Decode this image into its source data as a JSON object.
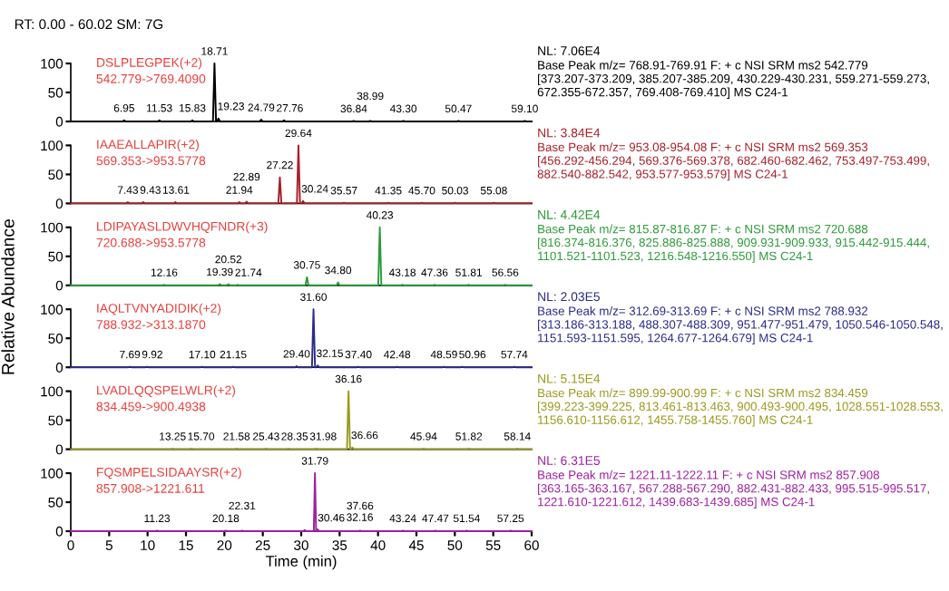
{
  "chart_data": [
    {
      "type": "line",
      "title": "RT: 0.00 - 60.02 SM: 7G",
      "xlim": [
        0,
        60
      ],
      "ylim": [
        0,
        100
      ],
      "yticks": [
        0,
        50,
        100
      ],
      "tick_labels": "y",
      "series": [
        {
          "color": "#000000",
          "x": [
            0,
            6.75,
            6.95,
            7.15,
            11.33,
            11.53,
            11.73,
            15.63,
            15.83,
            16.03,
            18.51,
            18.71,
            18.91,
            19.03,
            19.23,
            19.43,
            24.59,
            24.79,
            24.99,
            27.56,
            27.76,
            27.96,
            36.64,
            36.84,
            37.04,
            38.79,
            38.99,
            39.19,
            43.1,
            43.3,
            43.5,
            50.27,
            50.47,
            50.67,
            58.9,
            59.1,
            59.3,
            60
          ],
          "values": [
            0,
            0,
            2,
            0,
            0,
            2,
            0,
            0,
            2,
            0,
            0,
            100,
            0,
            0,
            5,
            0,
            0,
            3,
            0,
            0,
            2,
            0,
            0,
            1,
            0,
            0,
            1,
            0,
            0,
            1,
            0,
            0,
            1,
            0,
            0,
            1,
            0,
            0
          ]
        }
      ],
      "annotations": [
        "DSLPLEGPEK(+2)",
        "542.779->769.4090",
        "NL: 7.06E4",
        "Base Peak m/z= 768.91-769.91 F: + c NSI SRM ms2 542.779 [373.207-373.209, 385.207-385.209, 430.229-430.231, 559.271-559.273, 672.355-672.357, 769.408-769.410] MS C24-1",
        {
          "text": "6.95",
          "x": 6.95,
          "y": 2
        },
        {
          "text": "11.53",
          "x": 11.53,
          "y": 2
        },
        {
          "text": "15.83",
          "x": 15.83,
          "y": 2
        },
        {
          "text": "18.71",
          "x": 18.71,
          "y": 100
        },
        {
          "text": "19.23",
          "x": 19.23,
          "y": 5
        },
        {
          "text": "24.79",
          "x": 24.79,
          "y": 3
        },
        {
          "text": "27.76",
          "x": 27.76,
          "y": 2
        },
        {
          "text": "36.84",
          "x": 36.84,
          "y": 1
        },
        {
          "text": "38.99",
          "x": 38.99,
          "y": 1
        },
        {
          "text": "43.30",
          "x": 43.3,
          "y": 1
        },
        {
          "text": "50.47",
          "x": 50.47,
          "y": 1
        },
        {
          "text": "59.10",
          "x": 59.1,
          "y": 1
        }
      ]
    },
    {
      "type": "line",
      "xlim": [
        0,
        60
      ],
      "ylim": [
        0,
        100
      ],
      "yticks": [
        0,
        50,
        100
      ],
      "tick_labels": "y",
      "series": [
        {
          "color": "#a8202a",
          "x": [
            0,
            7.23,
            7.43,
            7.63,
            9.23,
            9.43,
            9.63,
            13.41,
            13.61,
            13.81,
            21.74,
            21.94,
            22.14,
            22.69,
            22.89,
            23.09,
            27.02,
            27.22,
            27.42,
            29.44,
            29.64,
            29.84,
            30.04,
            30.24,
            30.44,
            35.37,
            35.57,
            35.77,
            41.15,
            41.35,
            41.55,
            45.5,
            45.7,
            45.9,
            49.83,
            50.03,
            50.23,
            54.88,
            55.08,
            55.28,
            60
          ],
          "values": [
            0,
            0,
            2,
            0,
            0,
            2,
            0,
            0,
            2,
            0,
            0,
            2,
            0,
            0,
            3,
            0,
            0,
            45,
            0,
            0,
            100,
            0,
            0,
            4,
            0,
            0,
            1,
            0,
            0,
            1,
            0,
            0,
            1,
            0,
            0,
            1,
            0,
            0,
            1,
            0,
            0
          ]
        }
      ],
      "annotations": [
        "IAAEALLAPIR(+2)",
        "569.353->953.5778",
        "NL: 3.84E4",
        "Base Peak m/z= 953.08-954.08 F: + c NSI SRM ms2 569.353 [456.292-456.294, 569.376-569.378, 682.460-682.462, 753.497-753.499, 882.540-882.542, 953.577-953.579] MS C24-1",
        {
          "text": "7.43",
          "x": 7.43,
          "y": 2
        },
        {
          "text": "9.43",
          "x": 9.43,
          "y": 2
        },
        {
          "text": "13.61",
          "x": 13.61,
          "y": 2
        },
        {
          "text": "21.94",
          "x": 21.94,
          "y": 2
        },
        {
          "text": "22.89",
          "x": 22.89,
          "y": 3
        },
        {
          "text": "27.22",
          "x": 27.22,
          "y": 45
        },
        {
          "text": "29.64",
          "x": 29.64,
          "y": 100
        },
        {
          "text": "30.24",
          "x": 30.24,
          "y": 4
        },
        {
          "text": "35.57",
          "x": 35.57,
          "y": 1
        },
        {
          "text": "41.35",
          "x": 41.35,
          "y": 1
        },
        {
          "text": "45.70",
          "x": 45.7,
          "y": 1
        },
        {
          "text": "50.03",
          "x": 50.03,
          "y": 1
        },
        {
          "text": "55.08",
          "x": 55.08,
          "y": 1
        }
      ]
    },
    {
      "type": "line",
      "ylabel": "Relative Abundance",
      "xlim": [
        0,
        60
      ],
      "ylim": [
        0,
        100
      ],
      "yticks": [
        0,
        50,
        100
      ],
      "tick_labels": "y",
      "series": [
        {
          "color": "#2e9a3a",
          "x": [
            0,
            11.96,
            12.16,
            12.36,
            19.19,
            19.39,
            19.59,
            20.32,
            20.52,
            20.72,
            21.54,
            21.74,
            21.94,
            30.55,
            30.75,
            30.95,
            34.6,
            34.8,
            35.0,
            40.03,
            40.23,
            40.43,
            42.98,
            43.18,
            43.38,
            47.16,
            47.36,
            47.56,
            51.61,
            51.81,
            52.01,
            56.36,
            56.56,
            56.76,
            60
          ],
          "values": [
            0,
            0,
            1,
            0,
            0,
            2,
            0,
            0,
            2,
            0,
            0,
            1,
            0,
            0,
            14,
            0,
            0,
            5,
            0,
            0,
            100,
            0,
            0,
            1,
            0,
            0,
            1,
            0,
            0,
            1,
            0,
            0,
            1,
            0,
            0
          ]
        }
      ],
      "annotations": [
        "LDIPAYASLDWVHQFNDR(+3)",
        "720.688->953.5778",
        "NL: 4.42E4",
        "Base Peak m/z= 815.87-816.87 F: + c NSI SRM ms2 720.688 [816.374-816.376, 825.886-825.888, 909.931-909.933, 915.442-915.444, 1101.521-1101.523, 1216.548-1216.550] MS C24-1",
        {
          "text": "12.16",
          "x": 12.16,
          "y": 1
        },
        {
          "text": "19.39",
          "x": 19.39,
          "y": 2
        },
        {
          "text": "20.52",
          "x": 20.52,
          "y": 2
        },
        {
          "text": "21.74",
          "x": 21.74,
          "y": 1
        },
        {
          "text": "30.75",
          "x": 30.75,
          "y": 14
        },
        {
          "text": "34.80",
          "x": 34.8,
          "y": 5
        },
        {
          "text": "40.23",
          "x": 40.23,
          "y": 100
        },
        {
          "text": "43.18",
          "x": 43.18,
          "y": 1
        },
        {
          "text": "47.36",
          "x": 47.36,
          "y": 1
        },
        {
          "text": "51.81",
          "x": 51.81,
          "y": 1
        },
        {
          "text": "56.56",
          "x": 56.56,
          "y": 1
        }
      ]
    },
    {
      "type": "line",
      "xlim": [
        0,
        60
      ],
      "ylim": [
        0,
        100
      ],
      "yticks": [
        0,
        50,
        100
      ],
      "tick_labels": "y",
      "series": [
        {
          "color": "#2c2c8c",
          "x": [
            0,
            7.49,
            7.69,
            7.89,
            9.72,
            9.92,
            10.12,
            16.9,
            17.1,
            17.3,
            20.95,
            21.15,
            21.35,
            29.2,
            29.4,
            29.6,
            31.4,
            31.6,
            31.8,
            31.95,
            32.15,
            32.35,
            37.2,
            37.4,
            37.6,
            42.28,
            42.48,
            42.68,
            48.39,
            48.59,
            48.79,
            50.76,
            50.96,
            51.16,
            57.54,
            57.74,
            57.94,
            60
          ],
          "values": [
            0,
            0,
            1,
            0,
            0,
            1,
            0,
            0,
            1,
            0,
            0,
            1,
            0,
            0,
            2,
            0,
            0,
            100,
            0,
            0,
            3,
            0,
            0,
            1,
            0,
            0,
            1,
            0,
            0,
            1,
            0,
            0,
            1,
            0,
            0,
            1,
            0,
            0
          ]
        }
      ],
      "annotations": [
        "IAQLTVNYADIDIK(+2)",
        "788.932->313.1870",
        "NL: 2.03E5",
        "Base Peak m/z= 312.69-313.69 F: + c NSI SRM ms2 788.932 [313.186-313.188, 488.307-488.309, 951.477-951.479, 1050.546-1050.548, 1151.593-1151.595, 1264.677-1264.679] MS C24-1",
        {
          "text": "7.69",
          "x": 7.69,
          "y": 1
        },
        {
          "text": "9.92",
          "x": 9.92,
          "y": 1
        },
        {
          "text": "17.10",
          "x": 17.1,
          "y": 1
        },
        {
          "text": "21.15",
          "x": 21.15,
          "y": 1
        },
        {
          "text": "29.40",
          "x": 29.4,
          "y": 2
        },
        {
          "text": "31.60",
          "x": 31.6,
          "y": 100
        },
        {
          "text": "32.15",
          "x": 32.15,
          "y": 3
        },
        {
          "text": "37.40",
          "x": 37.4,
          "y": 1
        },
        {
          "text": "42.48",
          "x": 42.48,
          "y": 1
        },
        {
          "text": "48.59",
          "x": 48.59,
          "y": 1
        },
        {
          "text": "50.96",
          "x": 50.96,
          "y": 1
        },
        {
          "text": "57.74",
          "x": 57.74,
          "y": 1
        }
      ]
    },
    {
      "type": "line",
      "xlim": [
        0,
        60
      ],
      "ylim": [
        0,
        100
      ],
      "yticks": [
        0,
        50,
        100
      ],
      "tick_labels": "y",
      "series": [
        {
          "color": "#9a9a1e",
          "x": [
            0,
            13.05,
            13.25,
            13.45,
            15.5,
            15.7,
            15.9,
            21.38,
            21.58,
            21.78,
            25.23,
            25.43,
            25.63,
            28.15,
            28.35,
            28.55,
            31.78,
            31.98,
            32.18,
            35.96,
            36.16,
            36.36,
            36.46,
            36.66,
            36.86,
            45.74,
            45.94,
            46.14,
            51.62,
            51.82,
            52.02,
            57.94,
            58.14,
            58.34,
            60
          ],
          "values": [
            0,
            0,
            1,
            0,
            0,
            1,
            0,
            0,
            1,
            0,
            0,
            1,
            0,
            0,
            1,
            0,
            0,
            1,
            0,
            0,
            100,
            0,
            0,
            3,
            0,
            0,
            1,
            0,
            0,
            1,
            0,
            0,
            1,
            0,
            0
          ]
        }
      ],
      "annotations": [
        "LVADLQQSPELWLR(+2)",
        "834.459->900.4938",
        "NL: 5.15E4",
        "Base Peak m/z= 899.99-900.99 F: + c NSI SRM ms2 834.459 [399.223-399.225, 813.461-813.463, 900.493-900.495, 1028.551-1028.553, 1156.610-1156.612, 1455.758-1455.760] MS C24-1",
        {
          "text": "13.25",
          "x": 13.25,
          "y": 1
        },
        {
          "text": "15.70",
          "x": 15.7,
          "y": 1
        },
        {
          "text": "21.58",
          "x": 21.58,
          "y": 1
        },
        {
          "text": "25.43",
          "x": 25.43,
          "y": 1
        },
        {
          "text": "28.35",
          "x": 28.35,
          "y": 1
        },
        {
          "text": "31.98",
          "x": 31.98,
          "y": 1
        },
        {
          "text": "36.16",
          "x": 36.16,
          "y": 100
        },
        {
          "text": "36.66",
          "x": 36.66,
          "y": 3
        },
        {
          "text": "45.94",
          "x": 45.94,
          "y": 1
        },
        {
          "text": "51.82",
          "x": 51.82,
          "y": 1
        },
        {
          "text": "58.14",
          "x": 58.14,
          "y": 1
        }
      ]
    },
    {
      "type": "line",
      "xlabel": "Time (min)",
      "xlim": [
        0,
        60
      ],
      "ylim": [
        0,
        100
      ],
      "xticks": [
        0,
        5,
        10,
        15,
        20,
        25,
        30,
        35,
        40,
        45,
        50,
        55,
        60
      ],
      "yticks": [
        0,
        50,
        100
      ],
      "series": [
        {
          "color": "#a020a0",
          "x": [
            0,
            11.03,
            11.23,
            11.43,
            19.98,
            20.18,
            20.38,
            22.11,
            22.31,
            22.51,
            30.26,
            30.46,
            30.66,
            31.64,
            31.79,
            31.94,
            32.01,
            32.16,
            32.31,
            37.46,
            37.66,
            37.86,
            43.04,
            43.24,
            43.44,
            47.27,
            47.47,
            47.67,
            51.34,
            51.54,
            51.74,
            57.05,
            57.25,
            57.45,
            60
          ],
          "values": [
            0,
            0,
            1,
            0,
            0,
            1,
            0,
            0,
            1,
            0,
            0,
            2,
            0,
            0,
            100,
            0,
            0,
            3,
            0,
            0,
            1,
            0,
            0,
            1,
            0,
            0,
            1,
            0,
            0,
            1,
            0,
            0,
            1,
            0,
            0
          ]
        }
      ],
      "annotations": [
        "FQSMPELSIDAAYSR(+2)",
        "857.908->1221.611",
        "NL: 6.31E5",
        "Base Peak m/z= 1221.11-1222.11 F: + c NSI SRM ms2 857.908 [363.165-363.167, 567.288-567.290, 882.431-882.433, 995.515-995.517, 1221.610-1221.612, 1439.683-1439.685] MS C24-1",
        {
          "text": "11.23",
          "x": 11.23,
          "y": 1
        },
        {
          "text": "20.18",
          "x": 20.18,
          "y": 1
        },
        {
          "text": "22.31",
          "x": 22.31,
          "y": 1
        },
        {
          "text": "30.46",
          "x": 30.46,
          "y": 2
        },
        {
          "text": "31.79",
          "x": 31.79,
          "y": 100
        },
        {
          "text": "32.16",
          "x": 32.16,
          "y": 3
        },
        {
          "text": "37.66",
          "x": 37.66,
          "y": 1
        },
        {
          "text": "43.24",
          "x": 43.24,
          "y": 1
        },
        {
          "text": "47.47",
          "x": 47.47,
          "y": 1
        },
        {
          "text": "51.54",
          "x": 51.54,
          "y": 1
        },
        {
          "text": "57.25",
          "x": 57.25,
          "y": 1
        }
      ]
    }
  ]
}
